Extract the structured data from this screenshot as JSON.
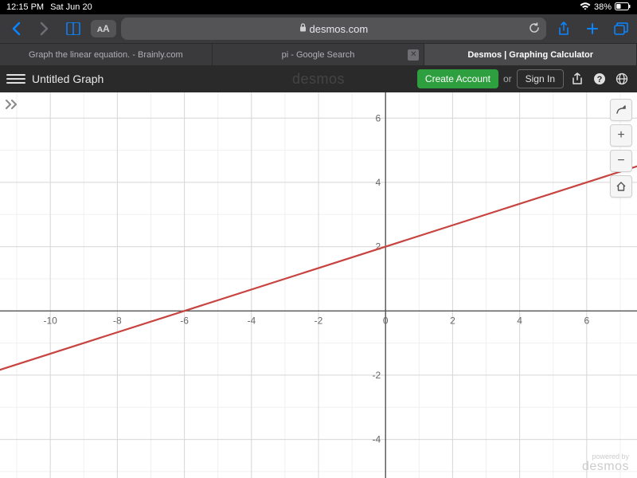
{
  "status": {
    "time": "12:15 PM",
    "date": "Sat Jun 20",
    "battery_pct": "38%"
  },
  "safari": {
    "url_host": "desmos.com",
    "aa_label": "ᴀA",
    "tabs": [
      {
        "label": "Graph the linear equation. - Brainly.com"
      },
      {
        "label": "pi - Google Search"
      },
      {
        "label": "Desmos | Graphing Calculator"
      }
    ]
  },
  "desmos": {
    "title": "Untitled Graph",
    "logo_text": "desmos",
    "create_account_label": "Create Account",
    "or_label": "or",
    "sign_in_label": "Sign In",
    "watermark_line1": "powered by",
    "watermark_line2": "desmos"
  },
  "graph": {
    "type": "line",
    "x_range": [
      -11.5,
      7.5
    ],
    "y_range": [
      -5.2,
      6.8
    ],
    "x_ticks": [
      -10,
      -8,
      -6,
      -4,
      -2,
      0,
      2,
      4,
      6
    ],
    "y_ticks": [
      -4,
      -2,
      2,
      4,
      6
    ],
    "minor_grid_color": "#f0f0f0",
    "major_grid_color": "#d8d8d8",
    "axis_color": "#555555",
    "line_color": "#c74440",
    "line_width": 2.2,
    "line_points": [
      {
        "x": -12,
        "y": -2
      },
      {
        "x": 8,
        "y": 4.667
      }
    ],
    "line_equation_desc": "slope 1/3, y-intercept 2"
  }
}
